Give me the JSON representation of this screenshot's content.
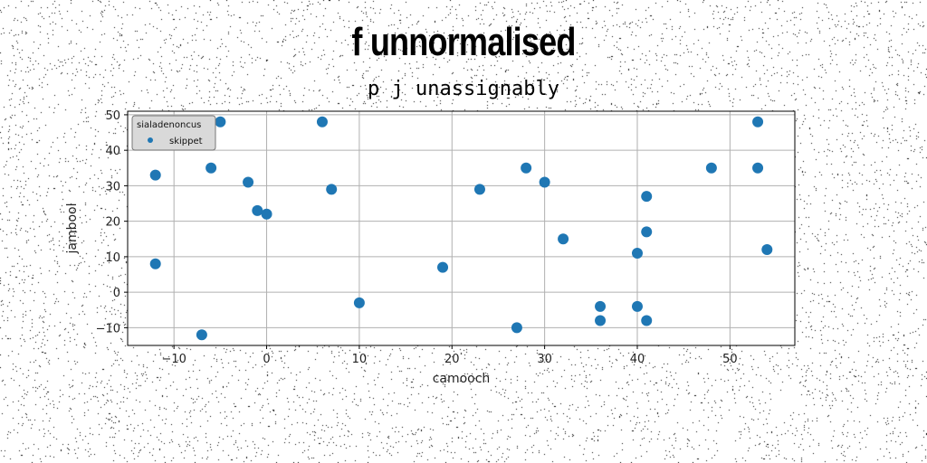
{
  "title": "f unnormalised",
  "subtitle": "p j unassignably",
  "colors": {
    "series": "#1f77b4",
    "grid": "#b0b0b0",
    "frame": "#000000"
  },
  "chart_data": {
    "type": "scatter",
    "xlabel": "camooch",
    "ylabel": "jambool",
    "xlim": [
      -15,
      57
    ],
    "ylim": [
      -15,
      51
    ],
    "xticks": [
      -10,
      0,
      10,
      20,
      30,
      40,
      50
    ],
    "yticks": [
      -10,
      0,
      10,
      20,
      30,
      40,
      50
    ],
    "xtick_labels": [
      "−10",
      "0",
      "10",
      "20",
      "30",
      "40",
      "50"
    ],
    "ytick_labels": [
      "−10",
      "0",
      "10",
      "20",
      "30",
      "40",
      "50"
    ],
    "grid": true,
    "legend": {
      "title": "sialadenoncus",
      "placement": "top-left"
    },
    "series": [
      {
        "name": "skippet",
        "points": [
          [
            -12,
            33
          ],
          [
            -12,
            8
          ],
          [
            -7,
            -12
          ],
          [
            -6,
            35
          ],
          [
            -5,
            48
          ],
          [
            -2,
            31
          ],
          [
            -1,
            23
          ],
          [
            0,
            22
          ],
          [
            6,
            48
          ],
          [
            7,
            29
          ],
          [
            10,
            -3
          ],
          [
            19,
            7
          ],
          [
            23,
            29
          ],
          [
            27,
            -10
          ],
          [
            28,
            35
          ],
          [
            30,
            31
          ],
          [
            32,
            15
          ],
          [
            36,
            -4
          ],
          [
            36,
            -8
          ],
          [
            40,
            11
          ],
          [
            40,
            -4
          ],
          [
            41,
            27
          ],
          [
            41,
            17
          ],
          [
            41,
            -8
          ],
          [
            48,
            35
          ],
          [
            53,
            48
          ],
          [
            53,
            35
          ],
          [
            54,
            12
          ]
        ]
      }
    ]
  }
}
